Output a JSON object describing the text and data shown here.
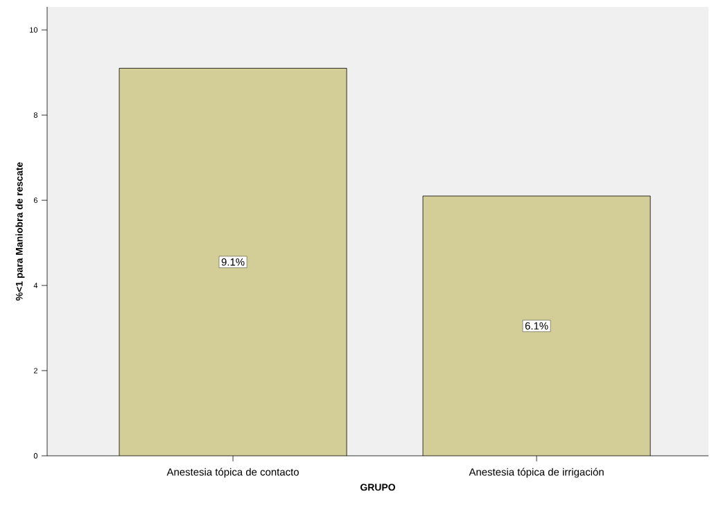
{
  "chart_data": {
    "type": "bar",
    "xlabel": "GRUPO",
    "ylabel": "%<1 para Maniobra de rescate",
    "categories": [
      "Anestesia tópica de contacto",
      "Anestesia tópica de irrigación"
    ],
    "values": [
      9.1,
      6.1
    ],
    "value_labels": [
      "9.1%",
      "6.1%"
    ],
    "color": "#d3ce97",
    "ylim": [
      0,
      10.54
    ],
    "yticks": [
      0,
      2,
      4,
      6,
      8,
      10
    ]
  }
}
